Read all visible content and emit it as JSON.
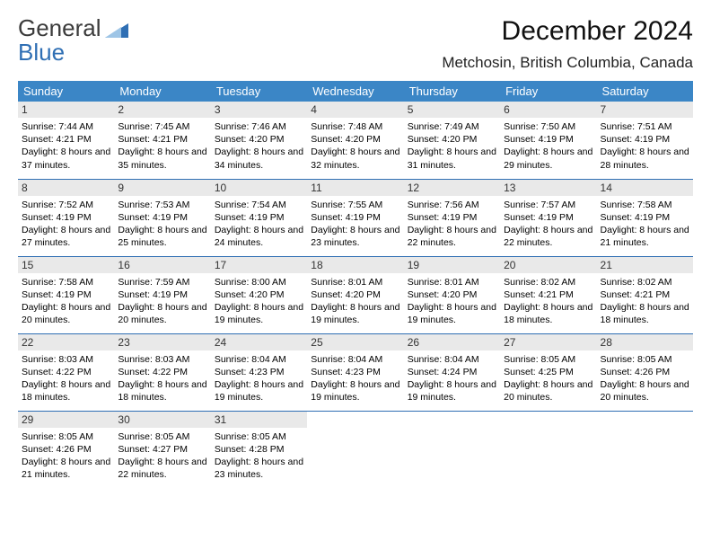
{
  "logo": {
    "line1": "General",
    "line2": "Blue"
  },
  "title": "December 2024",
  "location": "Metchosin, British Columbia, Canada",
  "colors": {
    "header_bg": "#3b86c6",
    "header_fg": "#ffffff",
    "daynum_bg": "#e9e9e9",
    "row_divider": "#2f6fb4",
    "logo_gray": "#3b3b3b",
    "logo_blue": "#2f6fb4"
  },
  "weekdays": [
    "Sunday",
    "Monday",
    "Tuesday",
    "Wednesday",
    "Thursday",
    "Friday",
    "Saturday"
  ],
  "weeks": [
    [
      {
        "day": "1",
        "sunrise": "Sunrise: 7:44 AM",
        "sunset": "Sunset: 4:21 PM",
        "daylight": "Daylight: 8 hours and 37 minutes."
      },
      {
        "day": "2",
        "sunrise": "Sunrise: 7:45 AM",
        "sunset": "Sunset: 4:21 PM",
        "daylight": "Daylight: 8 hours and 35 minutes."
      },
      {
        "day": "3",
        "sunrise": "Sunrise: 7:46 AM",
        "sunset": "Sunset: 4:20 PM",
        "daylight": "Daylight: 8 hours and 34 minutes."
      },
      {
        "day": "4",
        "sunrise": "Sunrise: 7:48 AM",
        "sunset": "Sunset: 4:20 PM",
        "daylight": "Daylight: 8 hours and 32 minutes."
      },
      {
        "day": "5",
        "sunrise": "Sunrise: 7:49 AM",
        "sunset": "Sunset: 4:20 PM",
        "daylight": "Daylight: 8 hours and 31 minutes."
      },
      {
        "day": "6",
        "sunrise": "Sunrise: 7:50 AM",
        "sunset": "Sunset: 4:19 PM",
        "daylight": "Daylight: 8 hours and 29 minutes."
      },
      {
        "day": "7",
        "sunrise": "Sunrise: 7:51 AM",
        "sunset": "Sunset: 4:19 PM",
        "daylight": "Daylight: 8 hours and 28 minutes."
      }
    ],
    [
      {
        "day": "8",
        "sunrise": "Sunrise: 7:52 AM",
        "sunset": "Sunset: 4:19 PM",
        "daylight": "Daylight: 8 hours and 27 minutes."
      },
      {
        "day": "9",
        "sunrise": "Sunrise: 7:53 AM",
        "sunset": "Sunset: 4:19 PM",
        "daylight": "Daylight: 8 hours and 25 minutes."
      },
      {
        "day": "10",
        "sunrise": "Sunrise: 7:54 AM",
        "sunset": "Sunset: 4:19 PM",
        "daylight": "Daylight: 8 hours and 24 minutes."
      },
      {
        "day": "11",
        "sunrise": "Sunrise: 7:55 AM",
        "sunset": "Sunset: 4:19 PM",
        "daylight": "Daylight: 8 hours and 23 minutes."
      },
      {
        "day": "12",
        "sunrise": "Sunrise: 7:56 AM",
        "sunset": "Sunset: 4:19 PM",
        "daylight": "Daylight: 8 hours and 22 minutes."
      },
      {
        "day": "13",
        "sunrise": "Sunrise: 7:57 AM",
        "sunset": "Sunset: 4:19 PM",
        "daylight": "Daylight: 8 hours and 22 minutes."
      },
      {
        "day": "14",
        "sunrise": "Sunrise: 7:58 AM",
        "sunset": "Sunset: 4:19 PM",
        "daylight": "Daylight: 8 hours and 21 minutes."
      }
    ],
    [
      {
        "day": "15",
        "sunrise": "Sunrise: 7:58 AM",
        "sunset": "Sunset: 4:19 PM",
        "daylight": "Daylight: 8 hours and 20 minutes."
      },
      {
        "day": "16",
        "sunrise": "Sunrise: 7:59 AM",
        "sunset": "Sunset: 4:19 PM",
        "daylight": "Daylight: 8 hours and 20 minutes."
      },
      {
        "day": "17",
        "sunrise": "Sunrise: 8:00 AM",
        "sunset": "Sunset: 4:20 PM",
        "daylight": "Daylight: 8 hours and 19 minutes."
      },
      {
        "day": "18",
        "sunrise": "Sunrise: 8:01 AM",
        "sunset": "Sunset: 4:20 PM",
        "daylight": "Daylight: 8 hours and 19 minutes."
      },
      {
        "day": "19",
        "sunrise": "Sunrise: 8:01 AM",
        "sunset": "Sunset: 4:20 PM",
        "daylight": "Daylight: 8 hours and 19 minutes."
      },
      {
        "day": "20",
        "sunrise": "Sunrise: 8:02 AM",
        "sunset": "Sunset: 4:21 PM",
        "daylight": "Daylight: 8 hours and 18 minutes."
      },
      {
        "day": "21",
        "sunrise": "Sunrise: 8:02 AM",
        "sunset": "Sunset: 4:21 PM",
        "daylight": "Daylight: 8 hours and 18 minutes."
      }
    ],
    [
      {
        "day": "22",
        "sunrise": "Sunrise: 8:03 AM",
        "sunset": "Sunset: 4:22 PM",
        "daylight": "Daylight: 8 hours and 18 minutes."
      },
      {
        "day": "23",
        "sunrise": "Sunrise: 8:03 AM",
        "sunset": "Sunset: 4:22 PM",
        "daylight": "Daylight: 8 hours and 18 minutes."
      },
      {
        "day": "24",
        "sunrise": "Sunrise: 8:04 AM",
        "sunset": "Sunset: 4:23 PM",
        "daylight": "Daylight: 8 hours and 19 minutes."
      },
      {
        "day": "25",
        "sunrise": "Sunrise: 8:04 AM",
        "sunset": "Sunset: 4:23 PM",
        "daylight": "Daylight: 8 hours and 19 minutes."
      },
      {
        "day": "26",
        "sunrise": "Sunrise: 8:04 AM",
        "sunset": "Sunset: 4:24 PM",
        "daylight": "Daylight: 8 hours and 19 minutes."
      },
      {
        "day": "27",
        "sunrise": "Sunrise: 8:05 AM",
        "sunset": "Sunset: 4:25 PM",
        "daylight": "Daylight: 8 hours and 20 minutes."
      },
      {
        "day": "28",
        "sunrise": "Sunrise: 8:05 AM",
        "sunset": "Sunset: 4:26 PM",
        "daylight": "Daylight: 8 hours and 20 minutes."
      }
    ],
    [
      {
        "day": "29",
        "sunrise": "Sunrise: 8:05 AM",
        "sunset": "Sunset: 4:26 PM",
        "daylight": "Daylight: 8 hours and 21 minutes."
      },
      {
        "day": "30",
        "sunrise": "Sunrise: 8:05 AM",
        "sunset": "Sunset: 4:27 PM",
        "daylight": "Daylight: 8 hours and 22 minutes."
      },
      {
        "day": "31",
        "sunrise": "Sunrise: 8:05 AM",
        "sunset": "Sunset: 4:28 PM",
        "daylight": "Daylight: 8 hours and 23 minutes."
      },
      null,
      null,
      null,
      null
    ]
  ]
}
